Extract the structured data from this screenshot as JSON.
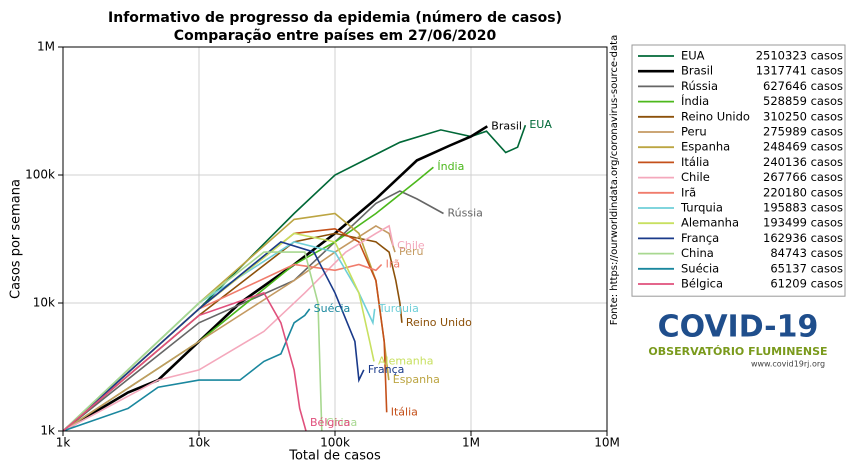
{
  "chart_data": {
    "type": "line",
    "title": "Informativo de progresso da epidemia (número de casos)",
    "subtitle": "Comparação entre países em 27/06/2020",
    "x_label": "Total de casos",
    "y_label": "Casos por semana",
    "source": "Fonte: https://ourworldindata.org/coronavirus-source-data",
    "log_x": true,
    "log_y": true,
    "grid": true,
    "legend": "right",
    "xlim": [
      1000,
      10000000
    ],
    "xticks": [
      {
        "value": 1000,
        "label": "1k"
      },
      {
        "value": 10000,
        "label": "10k"
      },
      {
        "value": 100000,
        "label": "100k"
      },
      {
        "value": 1000000,
        "label": "1M"
      },
      {
        "value": 10000000,
        "label": "10M"
      }
    ],
    "ylim": [
      1000,
      1000000
    ],
    "yticks": [
      {
        "value": 1000,
        "label": "1k"
      },
      {
        "value": 10000,
        "label": "10k"
      },
      {
        "value": 100000,
        "label": "100k"
      },
      {
        "value": 1000000,
        "label": "1M"
      }
    ],
    "series": [
      {
        "name": "EUA",
        "total": "2510323 casos",
        "color": "#006837",
        "x": [
          1000,
          10000,
          50000,
          100000,
          300000,
          600000,
          1000000,
          1300000,
          1800000,
          2200000,
          2510323
        ],
        "values": [
          1000,
          9000,
          50000,
          100000,
          180000,
          225000,
          200000,
          220000,
          150000,
          165000,
          245000
        ]
      },
      {
        "name": "Brasil",
        "total": "1317741 casos",
        "color": "#000000",
        "x": [
          1000,
          3000,
          5000,
          8000,
          20000,
          50000,
          100000,
          200000,
          400000,
          700000,
          1000000,
          1317741
        ],
        "values": [
          1000,
          2000,
          2500,
          4000,
          10000,
          20000,
          35000,
          65000,
          130000,
          170000,
          200000,
          240000
        ]
      },
      {
        "name": "Rússia",
        "total": "627646 casos",
        "color": "#666666",
        "x": [
          1000,
          10000,
          50000,
          100000,
          200000,
          300000,
          400000,
          627646
        ],
        "values": [
          1000,
          7000,
          15000,
          30000,
          60000,
          75000,
          65000,
          50000
        ]
      },
      {
        "name": "Índia",
        "total": "528859 casos",
        "color": "#4cb81c",
        "x": [
          1000,
          10000,
          50000,
          100000,
          200000,
          400000,
          528859
        ],
        "values": [
          1000,
          5000,
          20000,
          30000,
          50000,
          90000,
          115000
        ]
      },
      {
        "name": "Reino Unido",
        "total": "310250 casos",
        "color": "#8c510a",
        "x": [
          1000,
          10000,
          50000,
          100000,
          200000,
          250000,
          280000,
          300000,
          310250
        ],
        "values": [
          1000,
          8000,
          30000,
          35000,
          30000,
          25000,
          15000,
          10000,
          7000
        ]
      },
      {
        "name": "Peru",
        "total": "275989 casos",
        "color": "#c49a62",
        "x": [
          1000,
          10000,
          50000,
          100000,
          200000,
          250000,
          275989
        ],
        "values": [
          1000,
          5000,
          15000,
          25000,
          40000,
          35000,
          25000
        ]
      },
      {
        "name": "Espanha",
        "total": "248469 casos",
        "color": "#bca542",
        "x": [
          1000,
          10000,
          50000,
          100000,
          150000,
          200000,
          230000,
          248469
        ],
        "values": [
          1000,
          10000,
          45000,
          50000,
          35000,
          15000,
          5000,
          2500
        ]
      },
      {
        "name": "Itália",
        "total": "240136 casos",
        "color": "#c4501a",
        "x": [
          1000,
          10000,
          50000,
          100000,
          150000,
          200000,
          230000,
          240136
        ],
        "values": [
          1000,
          9000,
          35000,
          38000,
          30000,
          15000,
          5000,
          1400
        ]
      },
      {
        "name": "Chile",
        "total": "267766 casos",
        "color": "#f4a8bc",
        "x": [
          1000,
          5000,
          10000,
          30000,
          60000,
          120000,
          200000,
          250000,
          267766
        ],
        "values": [
          1000,
          2500,
          3000,
          6000,
          12000,
          25000,
          35000,
          40000,
          28000
        ]
      },
      {
        "name": "Irã",
        "total": "220180 casos",
        "color": "#f07c6c",
        "x": [
          1000,
          10000,
          50000,
          100000,
          150000,
          200000,
          220180
        ],
        "values": [
          1000,
          9000,
          20000,
          18000,
          20000,
          18000,
          20000
        ]
      },
      {
        "name": "Turquia",
        "total": "195883 casos",
        "color": "#6fcfd8",
        "x": [
          1000,
          10000,
          50000,
          100000,
          150000,
          190000,
          195883
        ],
        "values": [
          1000,
          10000,
          30000,
          25000,
          12000,
          7000,
          9000
        ]
      },
      {
        "name": "Alemanha",
        "total": "193499 casos",
        "color": "#c8e060",
        "x": [
          1000,
          10000,
          50000,
          100000,
          150000,
          180000,
          193499
        ],
        "values": [
          1000,
          9000,
          35000,
          30000,
          12000,
          5000,
          3500
        ]
      },
      {
        "name": "França",
        "total": "162936 casos",
        "color": "#1a3a8a",
        "x": [
          1000,
          10000,
          40000,
          70000,
          100000,
          140000,
          150000,
          162936
        ],
        "values": [
          1000,
          9000,
          30000,
          25000,
          12000,
          5000,
          2500,
          3000
        ]
      },
      {
        "name": "China",
        "total": "84743 casos",
        "color": "#a8d890",
        "x": [
          1000,
          10000,
          30000,
          60000,
          75000,
          80000
        ],
        "values": [
          1000,
          10000,
          25000,
          25000,
          10000,
          1000
        ]
      },
      {
        "name": "Suécia",
        "total": "65137 casos",
        "color": "#1a879e",
        "x": [
          1000,
          3000,
          5000,
          10000,
          20000,
          30000,
          40000,
          50000,
          60000,
          65137
        ],
        "values": [
          1000,
          1500,
          2200,
          2500,
          2500,
          3500,
          4000,
          7000,
          8000,
          9000
        ]
      },
      {
        "name": "Bélgica",
        "total": "61209 casos",
        "color": "#e0507c",
        "x": [
          1000,
          10000,
          30000,
          40000,
          50000,
          55000,
          61209
        ],
        "values": [
          1000,
          8000,
          12000,
          7000,
          3000,
          1500,
          1000
        ]
      }
    ]
  },
  "logo": {
    "title": "COVID-19",
    "subtitle": "OBSERVATÓRIO FLUMINENSE",
    "url": "www.covid19rj.org"
  }
}
